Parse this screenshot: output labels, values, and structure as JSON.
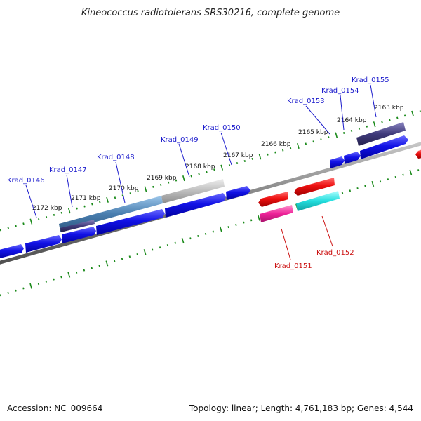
{
  "title": "Kineococcus radiotolerans SRS30216, complete genome",
  "footer": {
    "accession": "Accession: NC_009664",
    "summary": "Topology: linear; Length: 4,761,183 bp; Genes: 4,544"
  },
  "scale_labels": [
    "2172 kbp",
    "2171 kbp",
    "2170 kbp",
    "2169 kbp",
    "2168 kbp",
    "2167 kbp",
    "2166 kbp",
    "2165 kbp",
    "2164 kbp",
    "2163 kbp"
  ],
  "gene_labels": {
    "forward": [
      "Krad_0146",
      "Krad_0147",
      "Krad_0148",
      "Krad_0149",
      "Krad_0150",
      "Krad_0153",
      "Krad_0154",
      "Krad_0155"
    ],
    "reverse": [
      "Krad_0151",
      "Krad_0152"
    ]
  },
  "colors": {
    "forward_gene": "#1010e0",
    "reverse_gene": "#ee1111",
    "backbone": "#888888",
    "ticks": "#1a8a1a",
    "magenta_feature": "#ee2299",
    "cyan_feature": "#22dddd",
    "purple_feature": "#3f3a7a",
    "steel_feature": "#4a7fb0",
    "grey_feature": "#bcbcbc"
  }
}
